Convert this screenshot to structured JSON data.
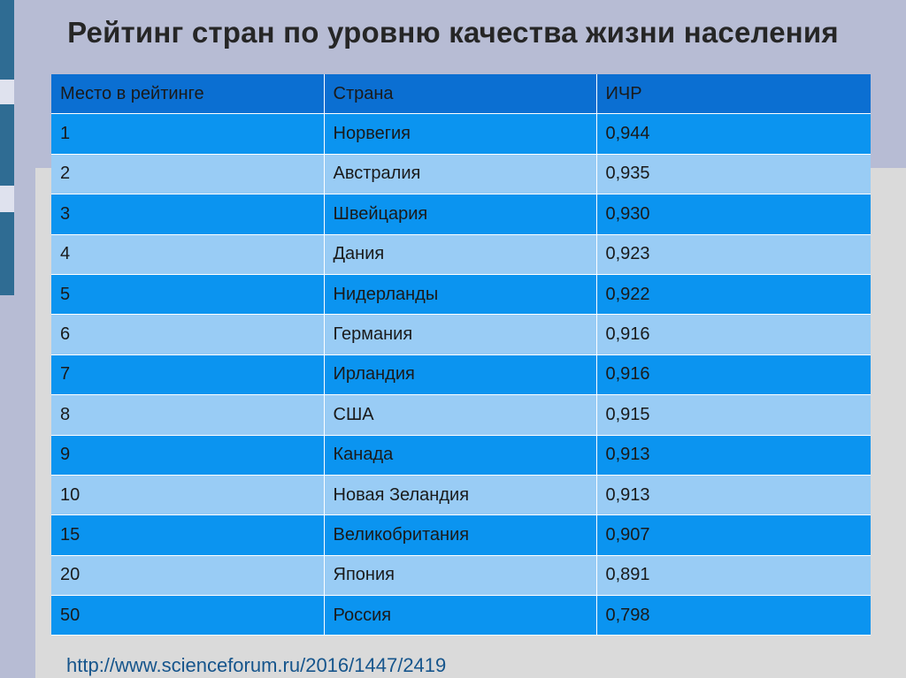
{
  "title": "Рейтинг стран по уровню качества жизни населения",
  "table": {
    "headers": [
      "Место в рейтинге",
      "Страна",
      "ИЧР"
    ],
    "rows": [
      [
        "1",
        "Норвегия",
        "0,944"
      ],
      [
        "2",
        "Австралия",
        "0,935"
      ],
      [
        "3",
        "Швейцария",
        "0,930"
      ],
      [
        "4",
        "Дания",
        "0,923"
      ],
      [
        "5",
        "Нидерланды",
        "0,922"
      ],
      [
        "6",
        "Германия",
        "0,916"
      ],
      [
        "7",
        "Ирландия",
        "0,916"
      ],
      [
        "8",
        "США",
        "0,915"
      ],
      [
        "9",
        "Канада",
        "0,913"
      ],
      [
        "10",
        "Новая Зеландия",
        "0,913"
      ],
      [
        "15",
        "Великобритания",
        "0,907"
      ],
      [
        "20",
        "Япония",
        "0,891"
      ],
      [
        "50",
        "Россия",
        "0,798"
      ]
    ]
  },
  "source": "http://www.scienceforum.ru/2016/1447/2419",
  "colors": {
    "header": "#0b6fd2",
    "row_dark": "#0b94f0",
    "row_light": "#99ccf5",
    "link": "#16558c"
  }
}
